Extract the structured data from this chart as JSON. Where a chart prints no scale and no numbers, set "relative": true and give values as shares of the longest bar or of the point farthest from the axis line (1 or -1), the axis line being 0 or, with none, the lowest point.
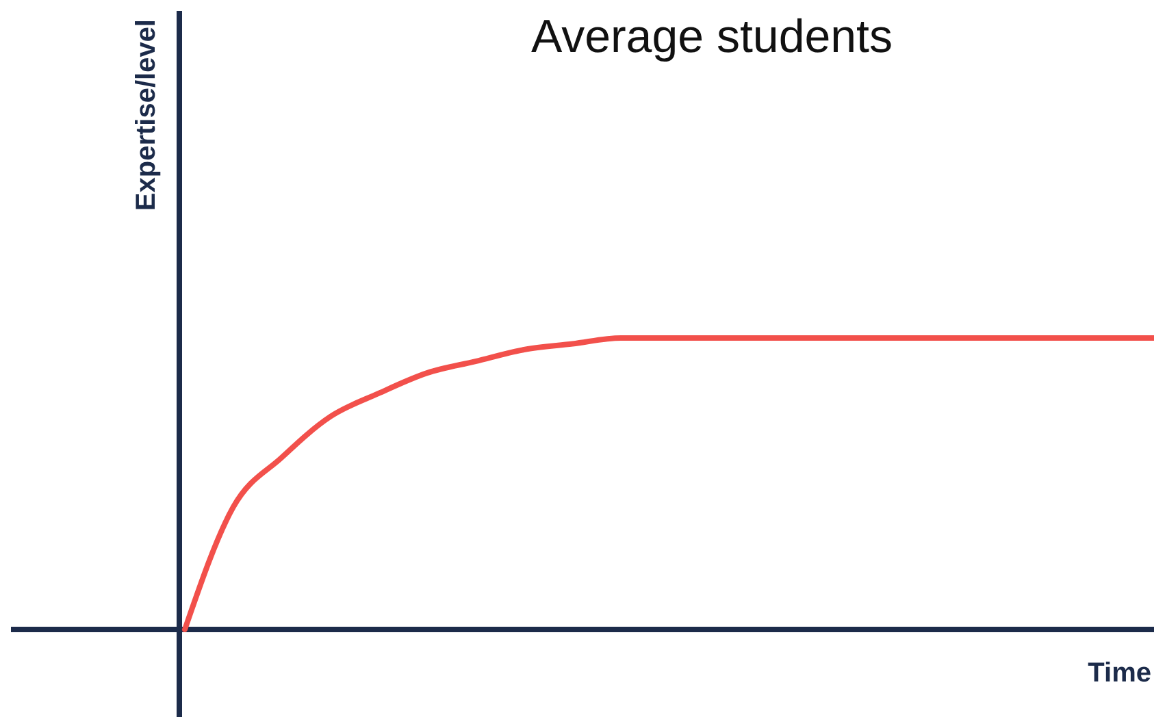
{
  "chart_data": {
    "type": "line",
    "title": "Average students",
    "xlabel": "Time",
    "ylabel": "Expertise/level",
    "relative": true,
    "categories": [
      null,
      null,
      null,
      null,
      null,
      null,
      null,
      null,
      null,
      null,
      null,
      null,
      null,
      null,
      null,
      null,
      null,
      null,
      null,
      null,
      null
    ],
    "series": [
      {
        "color": "#f2504b",
        "values": [
          0,
          0.42,
          0.59,
          0.73,
          0.81,
          0.88,
          0.92,
          0.96,
          0.98,
          1,
          1,
          1,
          1,
          1,
          1,
          1,
          1,
          1,
          1,
          1,
          1
        ]
      }
    ],
    "marker": "none",
    "line_style": "solid"
  }
}
